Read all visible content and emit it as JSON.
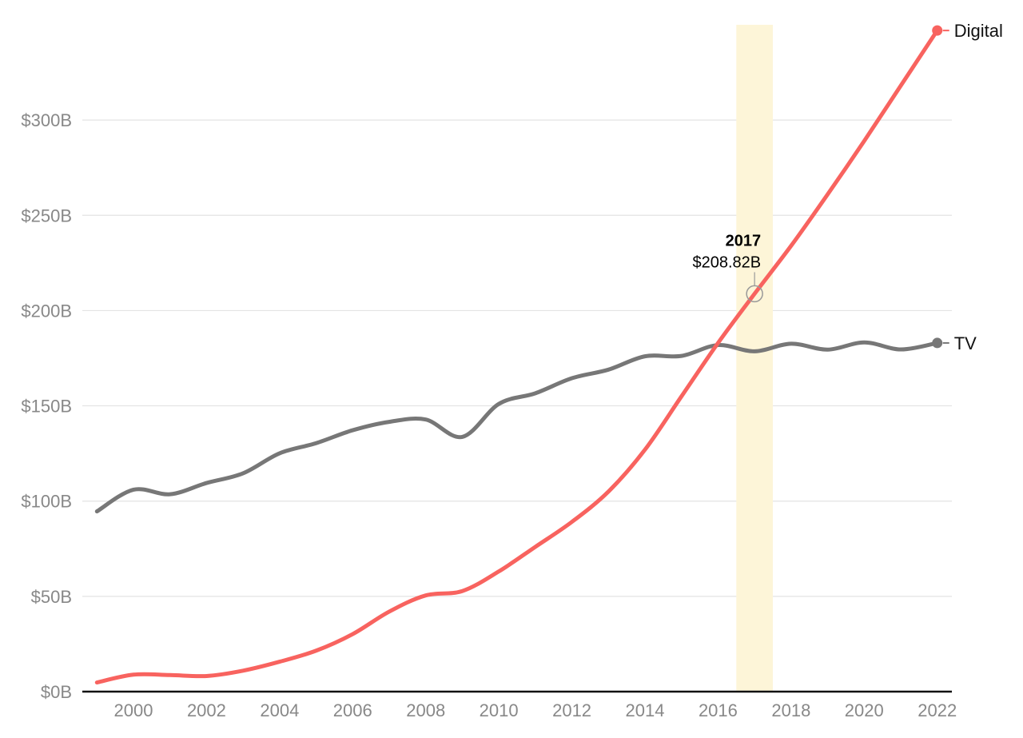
{
  "chart_data": {
    "type": "line",
    "title": "",
    "xlabel": "",
    "ylabel": "",
    "xlim": [
      1998.6,
      2022.4
    ],
    "ylim": [
      0,
      350
    ],
    "y_ticks": [
      {
        "value": 0,
        "label": "$0B"
      },
      {
        "value": 50,
        "label": "$50B"
      },
      {
        "value": 100,
        "label": "$100B"
      },
      {
        "value": 150,
        "label": "$150B"
      },
      {
        "value": 200,
        "label": "$200B"
      },
      {
        "value": 250,
        "label": "$250B"
      },
      {
        "value": 300,
        "label": "$300B"
      }
    ],
    "x_ticks": [
      {
        "value": 2000,
        "label": "2000"
      },
      {
        "value": 2002,
        "label": "2002"
      },
      {
        "value": 2004,
        "label": "2004"
      },
      {
        "value": 2006,
        "label": "2006"
      },
      {
        "value": 2008,
        "label": "2008"
      },
      {
        "value": 2010,
        "label": "2010"
      },
      {
        "value": 2012,
        "label": "2012"
      },
      {
        "value": 2014,
        "label": "2014"
      },
      {
        "value": 2016,
        "label": "2016"
      },
      {
        "value": 2018,
        "label": "2018"
      },
      {
        "value": 2020,
        "label": "2020"
      },
      {
        "value": 2022,
        "label": "2022"
      }
    ],
    "grid": true,
    "x": [
      1999,
      2000,
      2001,
      2002,
      2003,
      2004,
      2005,
      2006,
      2007,
      2008,
      2009,
      2010,
      2011,
      2012,
      2013,
      2014,
      2015,
      2016,
      2017,
      2018,
      2019,
      2020,
      2021,
      2022
    ],
    "series": [
      {
        "name": "Digital",
        "color": "#f8635f",
        "values": [
          4.8,
          8.9,
          8.7,
          8.2,
          11.0,
          15.7,
          21.5,
          30.2,
          42.0,
          50.5,
          52.8,
          63.1,
          76.0,
          89.1,
          105.0,
          127.0,
          155.0,
          183.0,
          208.82,
          234.0,
          261.0,
          289.0,
          318.0,
          347.0
        ]
      },
      {
        "name": "TV",
        "color": "#777777",
        "values": [
          94.6,
          106.0,
          103.6,
          109.5,
          114.6,
          125.1,
          130.4,
          137.2,
          141.6,
          142.8,
          133.7,
          151.0,
          156.6,
          164.5,
          169.0,
          176.0,
          176.2,
          181.9,
          178.6,
          182.6,
          179.5,
          183.3,
          179.6,
          183.0
        ]
      }
    ],
    "highlight": {
      "year_label": "2017",
      "value_label": "$208.82B",
      "x": 2017,
      "y": 208.82,
      "band_color": "#fdf5d8"
    }
  }
}
